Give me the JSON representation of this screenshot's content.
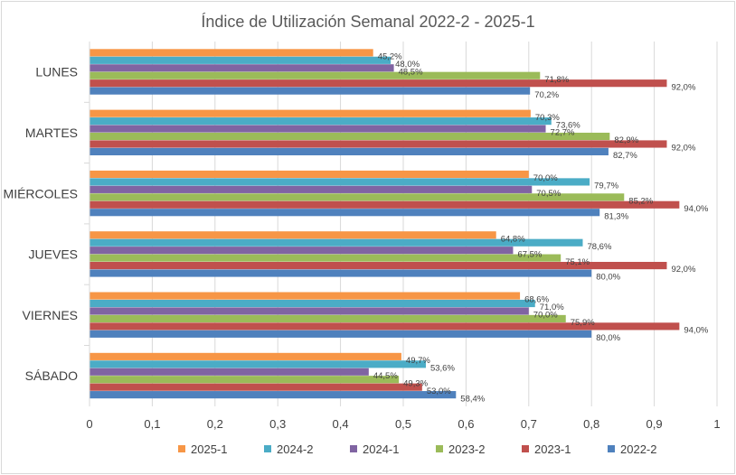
{
  "chart_data": {
    "type": "bar",
    "orientation": "horizontal",
    "title": "Índice de Utilización Semanal 2022-2 - 2025-1",
    "categories": [
      "LUNES",
      "MARTES",
      "MIÉRCOLES",
      "JUEVES",
      "VIERNES",
      "SÁBADO"
    ],
    "series": [
      {
        "name": "2025-1",
        "color": "#f79646",
        "values": [
          0.452,
          0.703,
          0.7,
          0.648,
          0.686,
          0.497
        ],
        "labels": [
          "45,2%",
          "70,3%",
          "70,0%",
          "64,8%",
          "68,6%",
          "49,7%"
        ]
      },
      {
        "name": "2024-2",
        "color": "#4bacc6",
        "values": [
          0.48,
          0.736,
          0.797,
          0.786,
          0.71,
          0.536
        ],
        "labels": [
          "48,0%",
          "73,6%",
          "79,7%",
          "78,6%",
          "71,0%",
          "53,6%"
        ]
      },
      {
        "name": "2024-1",
        "color": "#8064a2",
        "values": [
          0.485,
          0.727,
          0.705,
          0.675,
          0.7,
          0.445
        ],
        "labels": [
          "48,5%",
          "72,7%",
          "70,5%",
          "67,5%",
          "70,0%",
          "44,5%"
        ]
      },
      {
        "name": "2023-2",
        "color": "#9bbb59",
        "values": [
          0.718,
          0.829,
          0.852,
          0.751,
          0.759,
          0.493
        ],
        "labels": [
          "71,8%",
          "82,9%",
          "85,2%",
          "75,1%",
          "75,9%",
          "49,3%"
        ]
      },
      {
        "name": "2023-1",
        "color": "#c0504d",
        "values": [
          0.92,
          0.92,
          0.94,
          0.92,
          0.94,
          0.53
        ],
        "labels": [
          "92,0%",
          "92,0%",
          "94,0%",
          "92,0%",
          "94,0%",
          "53,0%"
        ]
      },
      {
        "name": "2022-2",
        "color": "#4f81bd",
        "values": [
          0.702,
          0.827,
          0.813,
          0.8,
          0.8,
          0.584
        ],
        "labels": [
          "70,2%",
          "82,7%",
          "81,3%",
          "80,0%",
          "80,0%",
          "58,4%"
        ]
      }
    ],
    "xlim": [
      0,
      1
    ],
    "xticks": [
      "0",
      "0,1",
      "0,2",
      "0,3",
      "0,4",
      "0,5",
      "0,6",
      "0,7",
      "0,8",
      "0,9",
      "1"
    ],
    "xlabel": "",
    "ylabel": "",
    "grid": "vertical",
    "legend": "bottom"
  }
}
